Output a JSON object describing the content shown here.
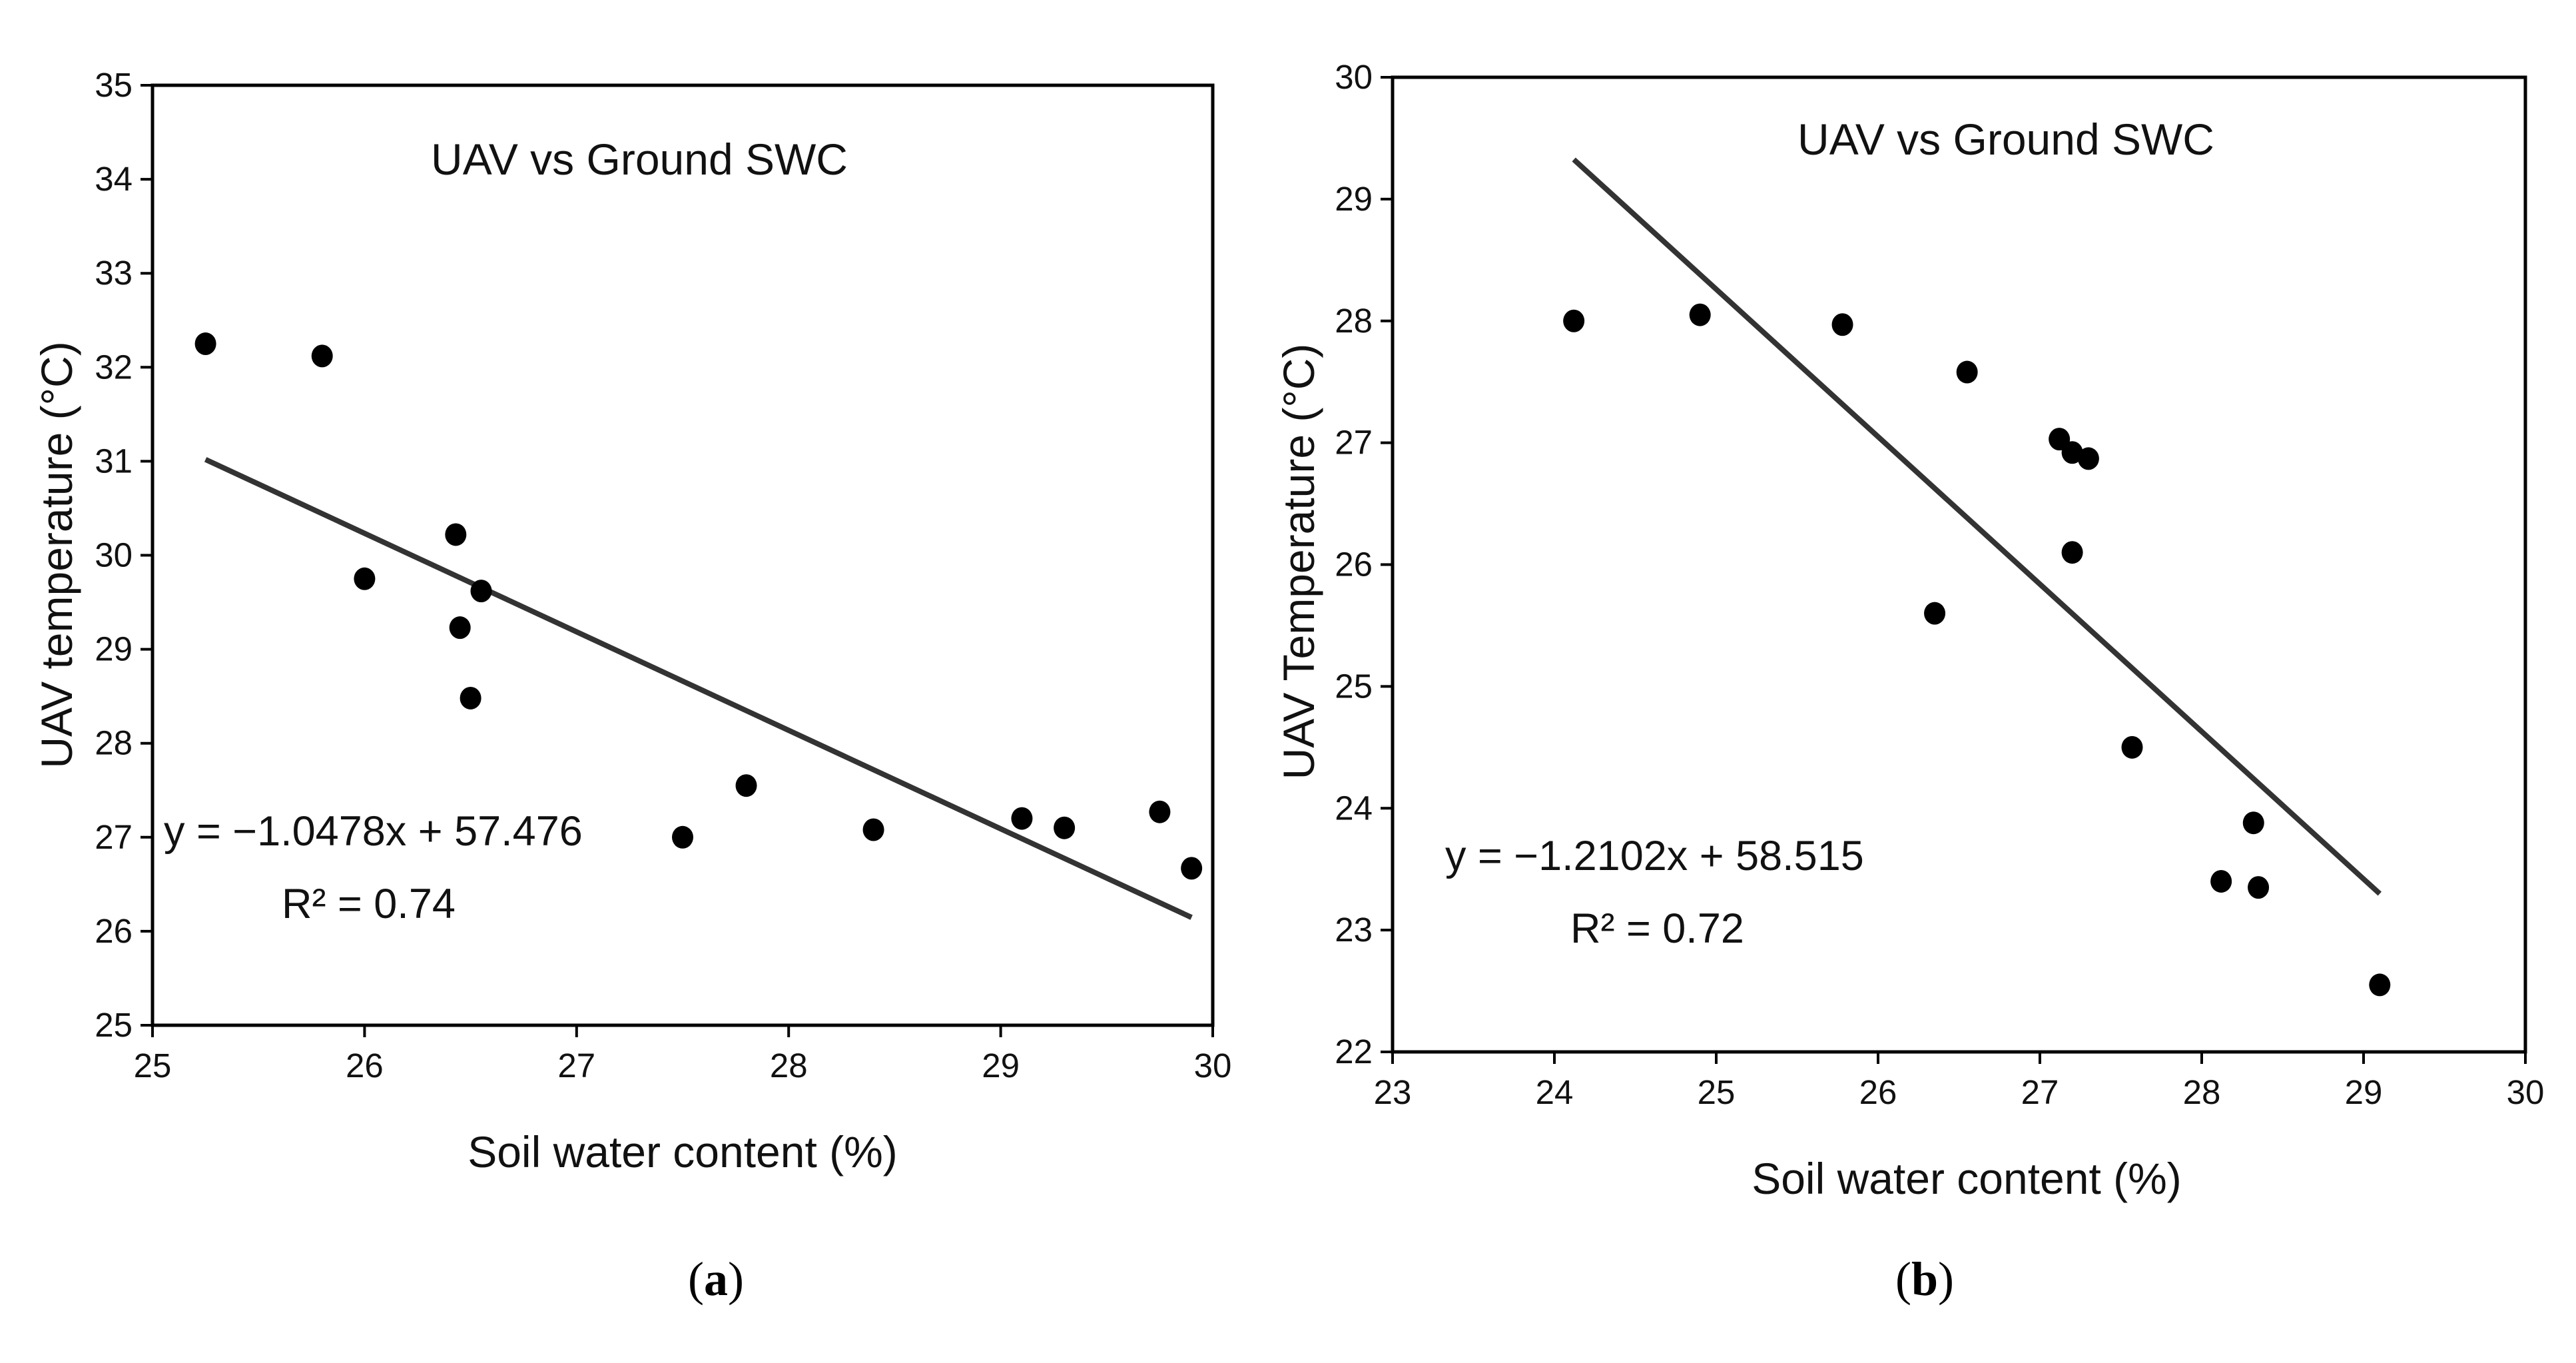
{
  "chart_data": [
    {
      "type": "scatter",
      "panel_label": "a",
      "title": "UAV vs Ground SWC",
      "xlabel": "Soil water content (%)",
      "ylabel": "UAV temperature (°C)",
      "xlim": [
        25,
        30
      ],
      "ylim": [
        25,
        35
      ],
      "xticks": [
        25,
        26,
        27,
        28,
        29,
        30
      ],
      "yticks": [
        25,
        26,
        27,
        28,
        29,
        30,
        31,
        32,
        33,
        34,
        35
      ],
      "points": [
        {
          "x": 25.25,
          "y": 32.25
        },
        {
          "x": 25.8,
          "y": 32.12
        },
        {
          "x": 26.0,
          "y": 29.75
        },
        {
          "x": 26.43,
          "y": 30.22
        },
        {
          "x": 26.45,
          "y": 29.23
        },
        {
          "x": 26.5,
          "y": 28.48
        },
        {
          "x": 26.55,
          "y": 29.62
        },
        {
          "x": 27.5,
          "y": 27.0
        },
        {
          "x": 27.8,
          "y": 27.55
        },
        {
          "x": 28.4,
          "y": 27.08
        },
        {
          "x": 29.1,
          "y": 27.2
        },
        {
          "x": 29.3,
          "y": 27.1
        },
        {
          "x": 29.75,
          "y": 27.27
        },
        {
          "x": 29.9,
          "y": 26.67
        }
      ],
      "trendline": {
        "slope": -1.0478,
        "intercept": 57.476,
        "x_range": [
          25.25,
          29.9
        ]
      },
      "equation": "y = −1.0478x + 57.476",
      "r_squared": "R² = 0.74"
    },
    {
      "type": "scatter",
      "panel_label": "b",
      "title": "UAV vs Ground SWC",
      "xlabel": "Soil water content (%)",
      "ylabel": "UAV Temperature (°C)",
      "xlim": [
        23,
        30
      ],
      "ylim": [
        22,
        30
      ],
      "xticks": [
        23,
        24,
        25,
        26,
        27,
        28,
        29,
        30
      ],
      "yticks": [
        22,
        23,
        24,
        25,
        26,
        27,
        28,
        29,
        30
      ],
      "points": [
        {
          "x": 24.12,
          "y": 28.0
        },
        {
          "x": 24.9,
          "y": 28.05
        },
        {
          "x": 25.78,
          "y": 27.97
        },
        {
          "x": 26.55,
          "y": 27.58
        },
        {
          "x": 27.12,
          "y": 27.03
        },
        {
          "x": 27.2,
          "y": 26.92
        },
        {
          "x": 27.3,
          "y": 26.87
        },
        {
          "x": 27.2,
          "y": 26.1
        },
        {
          "x": 26.35,
          "y": 25.6
        },
        {
          "x": 27.57,
          "y": 24.5
        },
        {
          "x": 28.32,
          "y": 23.88
        },
        {
          "x": 28.12,
          "y": 23.4
        },
        {
          "x": 28.35,
          "y": 23.35
        },
        {
          "x": 29.1,
          "y": 22.55
        }
      ],
      "trendline": {
        "slope": -1.2102,
        "intercept": 58.515,
        "x_range": [
          24.12,
          29.1
        ]
      },
      "equation": "y = −1.2102x + 58.515",
      "r_squared": "R² = 0.72"
    }
  ]
}
